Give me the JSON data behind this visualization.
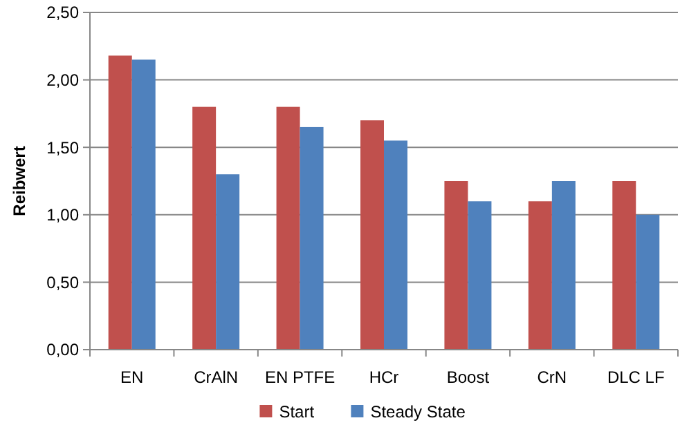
{
  "chart_data": {
    "type": "bar",
    "ylabel": "Reibwert",
    "categories": [
      "EN",
      "CrAlN",
      "EN PTFE",
      "HCr",
      "Boost",
      "CrN",
      "DLC LF"
    ],
    "series": [
      {
        "name": "Start",
        "color": "#c0504d",
        "values": [
          2.18,
          1.8,
          1.8,
          1.7,
          1.25,
          1.1,
          1.25
        ]
      },
      {
        "name": "Steady State",
        "color": "#4f81bd",
        "values": [
          2.15,
          1.3,
          1.65,
          1.55,
          1.1,
          1.25,
          1.0
        ]
      }
    ],
    "ylim": [
      0,
      2.5
    ],
    "yticks": [
      {
        "value": 0,
        "label": "0,00"
      },
      {
        "value": 0.5,
        "label": "0,50"
      },
      {
        "value": 1,
        "label": "1,00"
      },
      {
        "value": 1.5,
        "label": "1,50"
      },
      {
        "value": 2,
        "label": "2,00"
      },
      {
        "value": 2.5,
        "label": "2,50"
      }
    ],
    "grid": "y",
    "legend": "bottom"
  }
}
